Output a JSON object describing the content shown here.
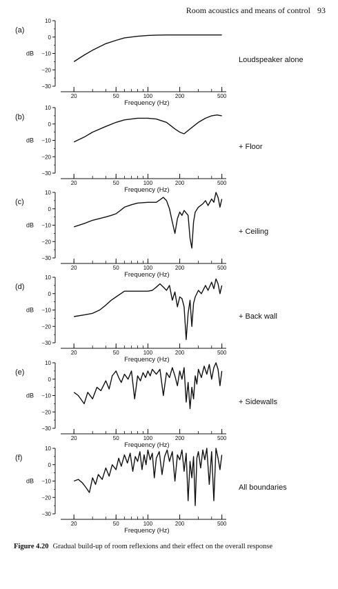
{
  "header": {
    "title": "Room acoustics and means of control",
    "page_number": "93"
  },
  "caption": {
    "label": "Figure 4.20",
    "text": "Gradual build-up of room reflexions and their effect on the overall response"
  },
  "chart_data": [
    {
      "type": "line",
      "panel_label": "(a)",
      "side_label": "Loudspeaker alone",
      "xlabel": "Frequency (Hz)",
      "ylabel": "dB",
      "x_scale": "log",
      "xlim": [
        15,
        550
      ],
      "ylim": [
        -30,
        10
      ],
      "xticks": [
        20,
        50,
        100,
        200,
        500
      ],
      "yticks": [
        10,
        0,
        -10,
        -20,
        -30
      ],
      "x": [
        20,
        25,
        30,
        40,
        50,
        60,
        80,
        100,
        120,
        150,
        200,
        300,
        500
      ],
      "y": [
        -15,
        -11,
        -8,
        -4,
        -2,
        -0.5,
        0.5,
        1,
        1.2,
        1.3,
        1.3,
        1.3,
        1.3
      ]
    },
    {
      "type": "line",
      "panel_label": "(b)",
      "side_label": "+ Floor",
      "xlabel": "Frequency (Hz)",
      "ylabel": "dB",
      "x_scale": "log",
      "xlim": [
        15,
        550
      ],
      "ylim": [
        -30,
        10
      ],
      "xticks": [
        20,
        50,
        100,
        200,
        500
      ],
      "yticks": [
        10,
        0,
        -10,
        -20,
        -30
      ],
      "x": [
        20,
        25,
        30,
        40,
        50,
        60,
        80,
        100,
        120,
        150,
        180,
        200,
        220,
        250,
        300,
        350,
        400,
        450,
        500
      ],
      "y": [
        -11,
        -8,
        -5,
        -1.5,
        1,
        2.5,
        3.5,
        3.5,
        3,
        1,
        -3,
        -5,
        -6,
        -3,
        1,
        3.5,
        5,
        5.5,
        5
      ]
    },
    {
      "type": "line",
      "panel_label": "(c)",
      "side_label": "+ Ceiling",
      "xlabel": "Frequency (Hz)",
      "ylabel": "dB",
      "x_scale": "log",
      "xlim": [
        15,
        550
      ],
      "ylim": [
        -30,
        10
      ],
      "xticks": [
        20,
        50,
        100,
        200,
        500
      ],
      "yticks": [
        10,
        0,
        -10,
        -20,
        -30
      ],
      "x": [
        20,
        25,
        30,
        40,
        45,
        50,
        55,
        60,
        70,
        80,
        100,
        120,
        130,
        140,
        150,
        160,
        170,
        180,
        190,
        200,
        210,
        220,
        240,
        250,
        260,
        270,
        280,
        300,
        330,
        350,
        370,
        400,
        420,
        440,
        460,
        480,
        500
      ],
      "y": [
        -11,
        -9,
        -7,
        -5,
        -4,
        -3,
        -1,
        1,
        2.5,
        3.5,
        4,
        4,
        5.5,
        7,
        5,
        0,
        -8,
        -15,
        -6,
        -2,
        -4,
        -1,
        -4,
        -18,
        -24,
        -8,
        -2,
        1,
        3,
        5,
        2,
        6,
        4,
        10,
        7,
        1,
        6
      ]
    },
    {
      "type": "line",
      "panel_label": "(d)",
      "side_label": "+ Back wall",
      "xlabel": "Frequency (Hz)",
      "ylabel": "dB",
      "x_scale": "log",
      "xlim": [
        15,
        550
      ],
      "ylim": [
        -30,
        10
      ],
      "xticks": [
        20,
        50,
        100,
        200,
        500
      ],
      "yticks": [
        10,
        0,
        -10,
        -20,
        -30
      ],
      "x": [
        20,
        25,
        30,
        35,
        40,
        45,
        50,
        60,
        70,
        80,
        100,
        110,
        120,
        130,
        140,
        150,
        160,
        170,
        180,
        190,
        200,
        210,
        220,
        230,
        240,
        250,
        260,
        270,
        280,
        300,
        320,
        350,
        370,
        400,
        420,
        440,
        460,
        480,
        500
      ],
      "y": [
        -14,
        -13,
        -12,
        -10,
        -7,
        -4,
        -2,
        1.5,
        1.5,
        1.5,
        1.5,
        2,
        4,
        6,
        4,
        2,
        5,
        -4,
        1,
        -8,
        -2,
        -3,
        -8,
        -28,
        -12,
        -4,
        -20,
        -6,
        -2,
        2,
        0,
        5,
        2,
        7,
        3,
        9,
        6,
        0,
        5
      ]
    },
    {
      "type": "line",
      "panel_label": "(e)",
      "side_label": "+ Sidewalls",
      "xlabel": "Frequency (Hz)",
      "ylabel": "dB",
      "x_scale": "log",
      "xlim": [
        15,
        550
      ],
      "ylim": [
        -30,
        10
      ],
      "xticks": [
        20,
        50,
        100,
        200,
        500
      ],
      "yticks": [
        10,
        0,
        -10,
        -20,
        -30
      ],
      "x": [
        20,
        22,
        25,
        27,
        30,
        33,
        36,
        40,
        43,
        46,
        50,
        53,
        56,
        60,
        65,
        70,
        75,
        80,
        85,
        90,
        95,
        100,
        105,
        110,
        120,
        130,
        140,
        150,
        160,
        170,
        180,
        190,
        200,
        210,
        220,
        230,
        240,
        250,
        260,
        270,
        280,
        290,
        300,
        320,
        340,
        360,
        380,
        400,
        420,
        440,
        460,
        480,
        500
      ],
      "y": [
        -8,
        -10,
        -15,
        -8,
        -12,
        -5,
        -7,
        -1,
        -6,
        2,
        5,
        1,
        -2,
        3,
        0,
        5,
        -12,
        2,
        -1,
        4,
        1,
        5,
        2,
        6,
        3,
        6,
        -10,
        4,
        1,
        7,
        2,
        -4,
        5,
        0,
        7,
        -14,
        -2,
        -18,
        -5,
        -12,
        2,
        -3,
        6,
        1,
        8,
        3,
        9,
        0,
        7,
        10,
        6,
        -4,
        5
      ]
    },
    {
      "type": "line",
      "panel_label": "(f)",
      "side_label": "All boundaries",
      "xlabel": "Frequency (Hz)",
      "ylabel": "dB",
      "x_scale": "log",
      "xlim": [
        15,
        550
      ],
      "ylim": [
        -30,
        10
      ],
      "xticks": [
        20,
        50,
        100,
        200,
        500
      ],
      "yticks": [
        10,
        0,
        -10,
        -20,
        -30
      ],
      "x": [
        20,
        22,
        24,
        26,
        28,
        30,
        32,
        34,
        37,
        40,
        43,
        46,
        50,
        53,
        56,
        60,
        64,
        68,
        72,
        76,
        80,
        84,
        88,
        92,
        96,
        100,
        105,
        110,
        115,
        120,
        128,
        136,
        144,
        152,
        160,
        170,
        180,
        190,
        200,
        210,
        220,
        230,
        240,
        250,
        260,
        270,
        280,
        290,
        300,
        315,
        330,
        345,
        360,
        380,
        400,
        420,
        440,
        460,
        480,
        500
      ],
      "y": [
        -10,
        -9,
        -11,
        -14,
        -17,
        -8,
        -12,
        -6,
        -9,
        -2,
        -7,
        0,
        -3,
        4,
        -1,
        6,
        1,
        7,
        -4,
        5,
        2,
        8,
        -3,
        6,
        0,
        9,
        3,
        7,
        -8,
        4,
        8,
        -6,
        5,
        9,
        2,
        8,
        -10,
        6,
        3,
        9,
        -4,
        7,
        -22,
        2,
        -8,
        5,
        -25,
        4,
        8,
        -2,
        9,
        3,
        10,
        -12,
        8,
        -22,
        10,
        4,
        -3,
        6
      ]
    }
  ]
}
